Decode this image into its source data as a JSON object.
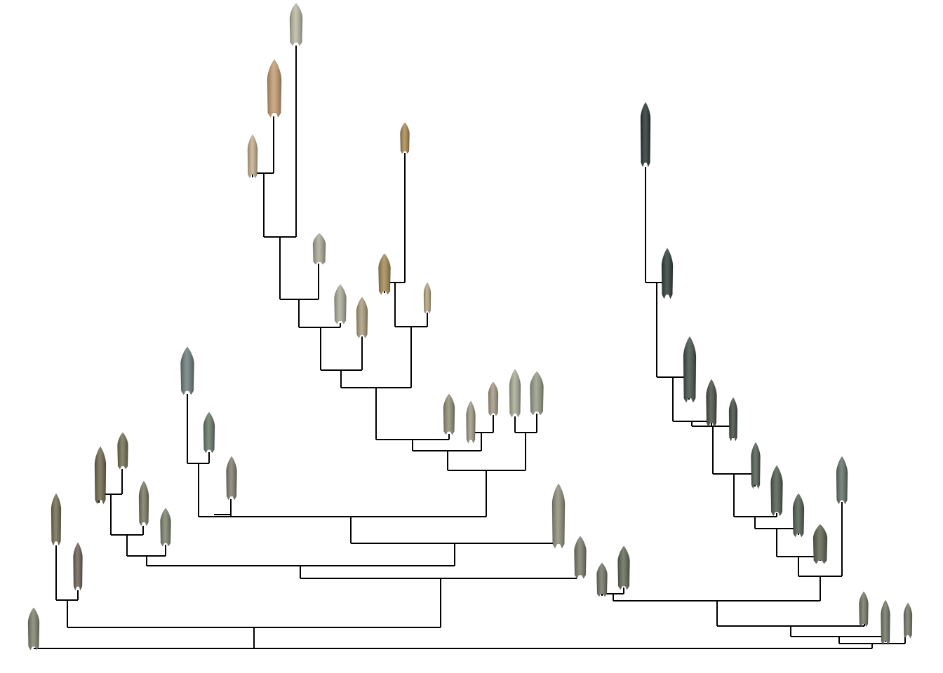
{
  "colors": {
    "background": "#ffffff",
    "branch": "#000000"
  },
  "diagram": {
    "type": "phylogenetic-tree",
    "leaf_count": 45,
    "leaf_depiction": "projectile-point-image"
  }
}
